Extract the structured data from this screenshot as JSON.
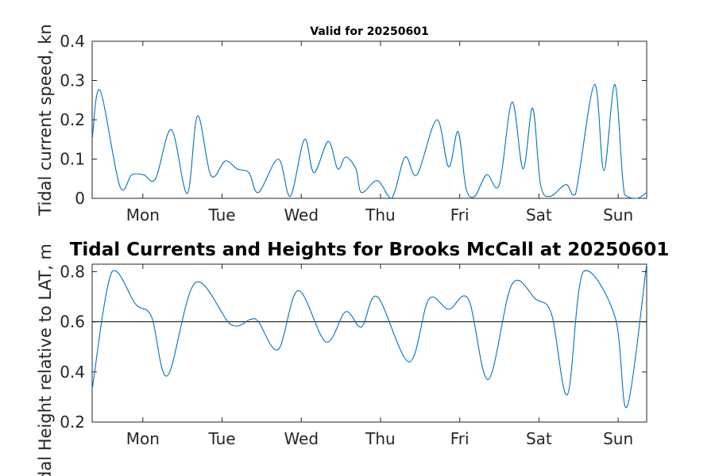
{
  "chart_data": [
    {
      "type": "line",
      "title": "Valid for 20250601",
      "ylabel": "Tidal current speed, kn",
      "ylim": [
        0,
        0.4
      ],
      "yticks": [
        "0",
        "0.1",
        "0.2",
        "0.3",
        "0.4"
      ],
      "xlim": [
        0,
        7
      ],
      "xticks": [
        "Mon",
        "Tue",
        "Wed",
        "Thu",
        "Fri",
        "Sat",
        "Sun"
      ],
      "grid": false,
      "series": [
        {
          "color": "#0072bd",
          "x": [
            0.0,
            0.1,
            0.35,
            0.5,
            0.65,
            0.8,
            1.0,
            1.2,
            1.33,
            1.5,
            1.68,
            1.83,
            1.98,
            2.1,
            2.35,
            2.5,
            2.68,
            2.8,
            2.98,
            3.1,
            3.2,
            3.33,
            3.4,
            3.6,
            3.78,
            3.95,
            4.1,
            4.35,
            4.5,
            4.62,
            4.72,
            4.83,
            4.98,
            5.14,
            5.3,
            5.44,
            5.56,
            5.66,
            5.78,
            5.98,
            6.1,
            6.34,
            6.46,
            6.6,
            6.72,
            6.88,
            7.0
          ],
          "y": [
            0.15,
            0.275,
            0.03,
            0.06,
            0.06,
            0.05,
            0.175,
            0.012,
            0.21,
            0.058,
            0.095,
            0.075,
            0.065,
            0.015,
            0.1,
            0.005,
            0.15,
            0.065,
            0.145,
            0.075,
            0.105,
            0.075,
            0.015,
            0.045,
            0.0,
            0.105,
            0.06,
            0.2,
            0.08,
            0.17,
            0.025,
            0.005,
            0.06,
            0.035,
            0.245,
            0.075,
            0.23,
            0.035,
            0.005,
            0.035,
            0.01,
            0.29,
            0.07,
            0.29,
            0.01,
            0.0,
            0.015
          ]
        }
      ]
    },
    {
      "type": "line",
      "title": "Tidal Currents and Heights for Brooks McCall at 20250601",
      "ylabel": "Tidal Height relative to LAT, m",
      "ylim": [
        0.2,
        0.83
      ],
      "yticks": [
        "0.2",
        "0.4",
        "0.6",
        "0.8"
      ],
      "xlim": [
        0,
        7
      ],
      "xticks": [
        "Mon",
        "Tue",
        "Wed",
        "Thu",
        "Fri",
        "Sat",
        "Sun"
      ],
      "reference_line": 0.6,
      "grid": false,
      "series": [
        {
          "color": "#0072bd",
          "x": [
            0.0,
            0.25,
            0.55,
            0.75,
            0.95,
            1.3,
            1.75,
            2.0,
            2.1,
            2.35,
            2.6,
            2.95,
            3.2,
            3.4,
            3.6,
            4.0,
            4.25,
            4.5,
            4.75,
            5.0,
            5.3,
            5.6,
            5.8,
            6.0,
            6.2,
            6.6,
            6.75,
            7.0
          ],
          "y": [
            0.33,
            0.8,
            0.67,
            0.62,
            0.385,
            0.755,
            0.59,
            0.61,
            0.6,
            0.49,
            0.725,
            0.52,
            0.64,
            0.58,
            0.7,
            0.44,
            0.69,
            0.65,
            0.69,
            0.37,
            0.75,
            0.69,
            0.63,
            0.31,
            0.8,
            0.62,
            0.26,
            0.83
          ]
        }
      ]
    }
  ]
}
